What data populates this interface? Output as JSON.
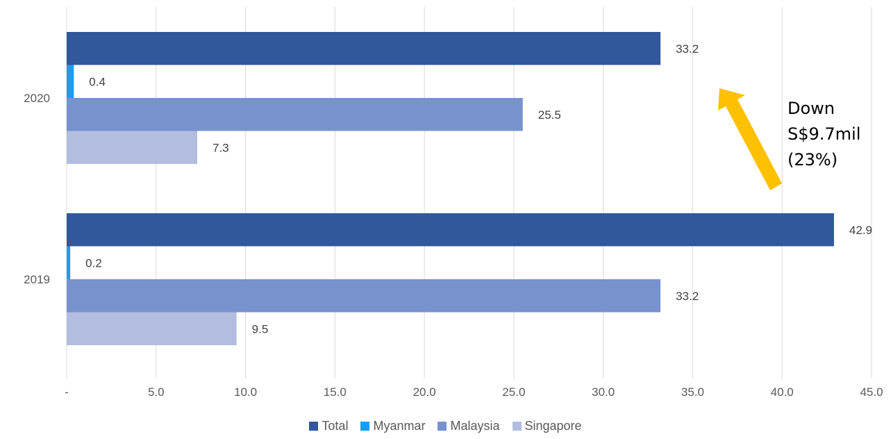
{
  "chart_data": {
    "type": "bar",
    "orientation": "horizontal",
    "categories": [
      "2020",
      "2019"
    ],
    "series": [
      {
        "name": "Total",
        "color": "#30589a",
        "values": [
          33.2,
          42.9
        ],
        "labels": [
          "33.2",
          "42.9"
        ]
      },
      {
        "name": "Myanmar",
        "color": "#1c9cf0",
        "values": [
          0.4,
          0.2
        ],
        "labels": [
          "0.4",
          "0.2"
        ]
      },
      {
        "name": "Malaysia",
        "color": "#7892d0",
        "values": [
          25.5,
          33.2
        ],
        "labels": [
          "25.5",
          "33.2"
        ]
      },
      {
        "name": "Singapore",
        "color": "#b2bde0",
        "values": [
          7.3,
          9.5
        ],
        "labels": [
          "7.3",
          "9.5"
        ]
      }
    ],
    "xlim": [
      0,
      45
    ],
    "xticks": [
      0,
      5,
      10,
      15,
      20,
      25,
      30,
      35,
      40,
      45
    ],
    "xtick_labels": [
      "-",
      "5.0",
      "10.0",
      "15.0",
      "20.0",
      "25.0",
      "30.0",
      "35.0",
      "40.0",
      "45.0"
    ],
    "grid": "vertical",
    "legend_position": "bottom",
    "annotation": {
      "lines": [
        "Down",
        "S$9.7mil",
        "(23%)"
      ],
      "arrow_color": "#ffc000"
    }
  }
}
